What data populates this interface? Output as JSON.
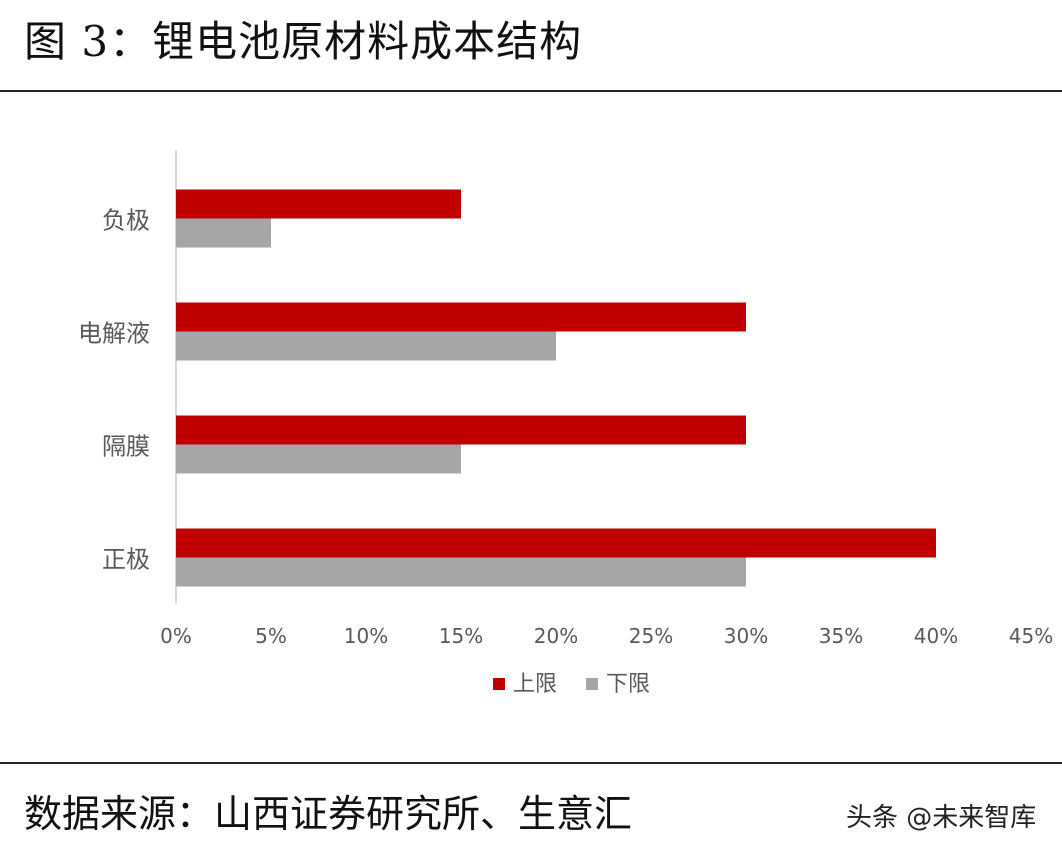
{
  "figure_title": "图 3：锂电池原材料成本结构",
  "source_text": "数据来源：山西证券研究所、生意汇",
  "watermark": "头条 @未来智库",
  "colors": {
    "upper": "#C00000",
    "lower": "#A6A6A6",
    "axis": "#D9D9D9",
    "label": "#595959"
  },
  "chart_data": {
    "type": "bar",
    "orientation": "horizontal",
    "title": "",
    "xlabel": "",
    "ylabel": "",
    "categories": [
      "负极",
      "电解液",
      "隔膜",
      "正极"
    ],
    "series": [
      {
        "name": "上限",
        "values": [
          15,
          30,
          30,
          40
        ]
      },
      {
        "name": "下限",
        "values": [
          5,
          20,
          15,
          30
        ]
      }
    ],
    "xlim": [
      0,
      45
    ],
    "xticks": [
      0,
      5,
      10,
      15,
      20,
      25,
      30,
      35,
      40,
      45
    ],
    "xtick_labels": [
      "0%",
      "5%",
      "10%",
      "15%",
      "20%",
      "25%",
      "30%",
      "35%",
      "40%",
      "45%"
    ],
    "grid": false,
    "legend": "bottom"
  }
}
